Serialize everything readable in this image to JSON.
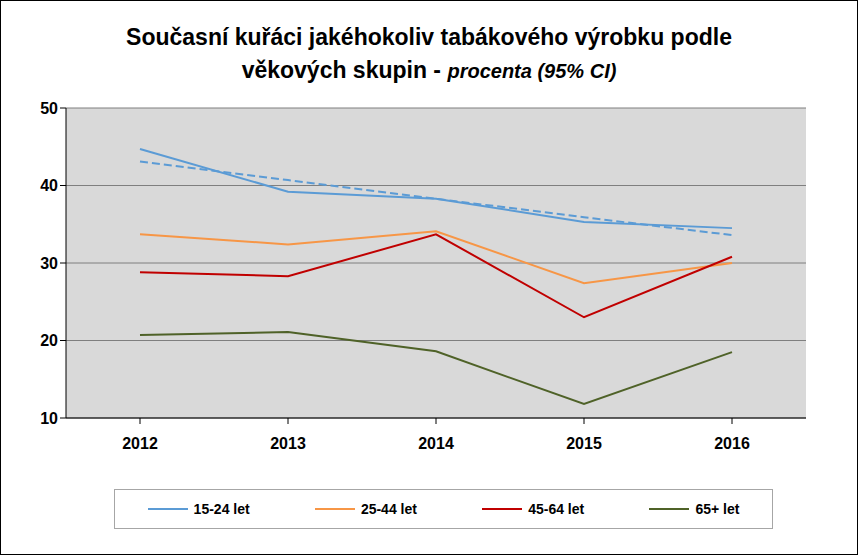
{
  "chart_data": {
    "type": "line",
    "title": "Současní kuřáci jakéhokoliv tabákového výrobku podle věkových skupin -",
    "subtitle": "procenta (95% CI)",
    "categories": [
      "2012",
      "2013",
      "2014",
      "2015",
      "2016"
    ],
    "ylim": [
      10,
      50
    ],
    "yticks": [
      10,
      20,
      30,
      40,
      50
    ],
    "grid": true,
    "legend": "bottom",
    "series": [
      {
        "name": "15-24 let",
        "color": "#5b9bd5",
        "values": [
          44.7,
          39.2,
          38.3,
          35.3,
          34.5
        ]
      },
      {
        "color": "#5b9bd5",
        "line_style": "dashed",
        "values": [
          43.1,
          40.7,
          38.3,
          35.9,
          33.6
        ]
      },
      {
        "name": "25-44 let",
        "color": "#f79646",
        "values": [
          33.7,
          32.4,
          34.1,
          27.4,
          30.0
        ]
      },
      {
        "name": "45-64 let",
        "color": "#c00000",
        "values": [
          28.8,
          28.3,
          33.7,
          23.0,
          30.8
        ]
      },
      {
        "name": "65+ let",
        "color": "#4f6228",
        "values": [
          20.7,
          21.1,
          18.6,
          11.8,
          18.5
        ]
      }
    ]
  }
}
